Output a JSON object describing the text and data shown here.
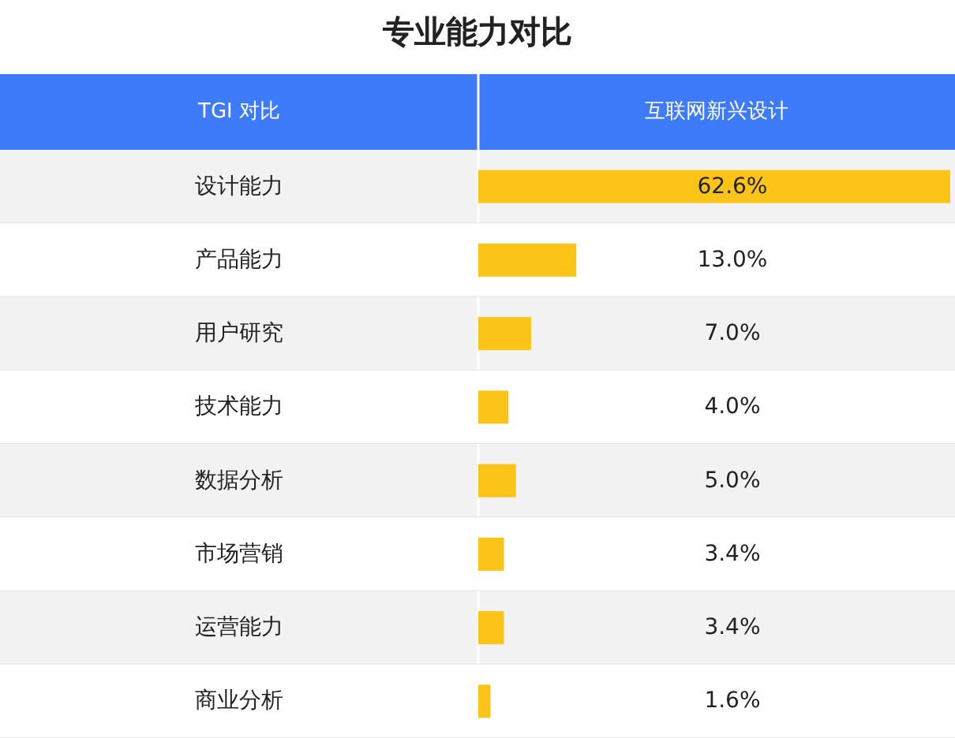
{
  "chart_data": {
    "type": "bar",
    "orientation": "horizontal",
    "title": "专业能力对比",
    "ylabel": "TGI 对比",
    "xlabel": "互联网新兴设计",
    "categories": [
      "设计能力",
      "产品能力",
      "用户研究",
      "技术能力",
      "数据分析",
      "市场营销",
      "运营能力",
      "商业分析"
    ],
    "values": [
      62.6,
      13.0,
      7.0,
      4.0,
      5.0,
      3.4,
      3.4,
      1.6
    ],
    "value_labels": [
      "62.6%",
      "13.0%",
      "7.0%",
      "4.0%",
      "5.0%",
      "3.4%",
      "3.4%",
      "1.6%"
    ],
    "color": "#fcc419",
    "grid": true
  }
}
